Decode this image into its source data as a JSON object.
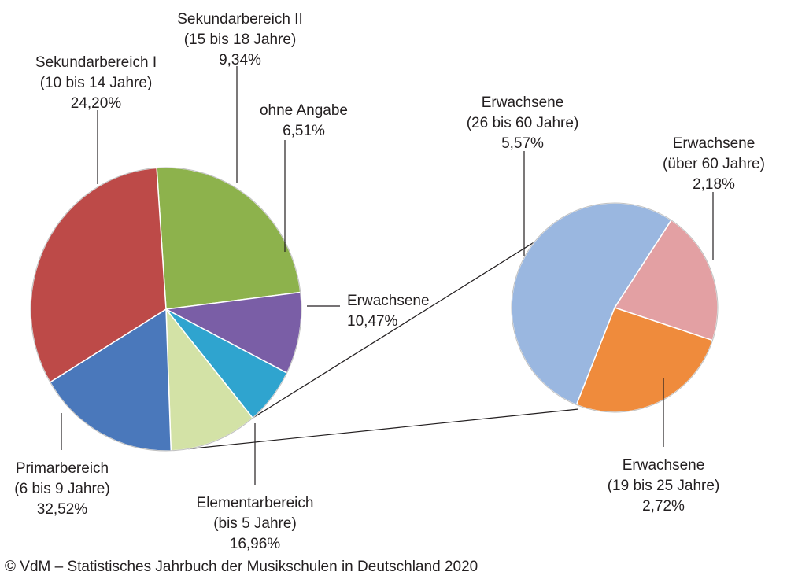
{
  "chart_data": [
    {
      "type": "pie",
      "slices": [
        {
          "label": "Sekundarbereich I",
          "sublabel": "(10 bis 14 Jahre)",
          "value_label": "24,20%",
          "value": 24.2,
          "color": "#8db24c"
        },
        {
          "label": "Sekundarbereich II",
          "sublabel": "(15 bis 18 Jahre)",
          "value_label": "9,34%",
          "value": 9.34,
          "color": "#7a5ea6"
        },
        {
          "label": "ohne Angabe",
          "sublabel": "",
          "value_label": "6,51%",
          "value": 6.51,
          "color": "#2fa4cf"
        },
        {
          "label": "Erwachsene",
          "sublabel": "",
          "value_label": "10,47%",
          "value": 10.47,
          "color": "#d3e2a6"
        },
        {
          "label": "Elementarbereich",
          "sublabel": "(bis 5 Jahre)",
          "value_label": "16,96%",
          "value": 16.96,
          "color": "#4a78bb"
        },
        {
          "label": "Primarbereich",
          "sublabel": "(6 bis 9 Jahre)",
          "value_label": "32,52%",
          "value": 32.52,
          "color": "#bd4a48"
        }
      ]
    },
    {
      "type": "pie",
      "slices": [
        {
          "label": "Erwachsene",
          "sublabel": "(über 60 Jahre)",
          "value_label": "2,18%",
          "value": 2.18,
          "color": "#e3a0a3"
        },
        {
          "label": "Erwachsene",
          "sublabel": "(19 bis 25 Jahre)",
          "value_label": "2,72%",
          "value": 2.72,
          "color": "#ef8b3c"
        },
        {
          "label": "Erwachsene",
          "sublabel": "(26 bis 60 Jahre)",
          "value_label": "5,57%",
          "value": 5.57,
          "color": "#9ab7e0"
        }
      ]
    }
  ],
  "source": "© VdM – Statistisches Jahrbuch der Musikschulen in Deutschland 2020"
}
